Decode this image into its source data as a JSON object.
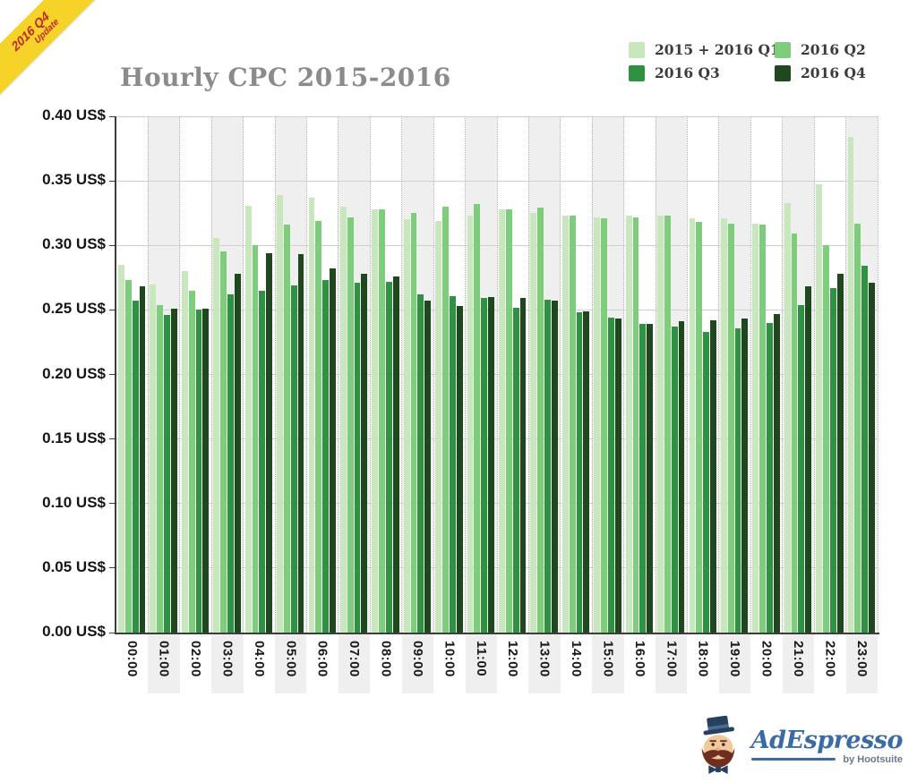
{
  "ribbon": {
    "line1": "2016 Q4",
    "line2": "Update"
  },
  "title": "Hourly CPC 2015-2016",
  "legend": [
    {
      "label": "2015 + 2016 Q1",
      "color": "#c8e7bd"
    },
    {
      "label": "2016 Q2",
      "color": "#7ecd7c"
    },
    {
      "label": "2016 Q3",
      "color": "#2f9242"
    },
    {
      "label": "2016 Q4",
      "color": "#20481f"
    }
  ],
  "chart_data": {
    "type": "bar",
    "title": "Hourly CPC 2015-2016",
    "categories": [
      "00:00",
      "01:00",
      "02:00",
      "03:00",
      "04:00",
      "05:00",
      "06:00",
      "07:00",
      "08:00",
      "09:00",
      "10:00",
      "11:00",
      "12:00",
      "13:00",
      "14:00",
      "15:00",
      "16:00",
      "17:00",
      "18:00",
      "19:00",
      "20:00",
      "21:00",
      "22:00",
      "23:00"
    ],
    "series": [
      {
        "name": "2015 + 2016 Q1",
        "color": "#c8e7bd",
        "values": [
          0.285,
          0.27,
          0.28,
          0.306,
          0.331,
          0.339,
          0.337,
          0.33,
          0.328,
          0.32,
          0.319,
          0.323,
          0.328,
          0.325,
          0.323,
          0.322,
          0.323,
          0.323,
          0.321,
          0.321,
          0.317,
          0.333,
          0.347,
          0.384
        ]
      },
      {
        "name": "2016 Q2",
        "color": "#7ecd7c",
        "values": [
          0.273,
          0.254,
          0.265,
          0.295,
          0.3,
          0.316,
          0.319,
          0.322,
          0.328,
          0.325,
          0.33,
          0.332,
          0.328,
          0.329,
          0.323,
          0.321,
          0.322,
          0.323,
          0.318,
          0.317,
          0.316,
          0.309,
          0.3,
          0.317
        ]
      },
      {
        "name": "2016 Q3",
        "color": "#2f9242",
        "values": [
          0.257,
          0.246,
          0.25,
          0.262,
          0.265,
          0.269,
          0.273,
          0.271,
          0.272,
          0.262,
          0.261,
          0.259,
          0.252,
          0.258,
          0.248,
          0.244,
          0.239,
          0.237,
          0.233,
          0.236,
          0.24,
          0.254,
          0.267,
          0.284
        ]
      },
      {
        "name": "2016 Q4",
        "color": "#20481f",
        "values": [
          0.268,
          0.251,
          0.251,
          0.278,
          0.294,
          0.293,
          0.282,
          0.278,
          0.276,
          0.257,
          0.253,
          0.26,
          0.259,
          0.257,
          0.249,
          0.243,
          0.239,
          0.241,
          0.242,
          0.243,
          0.247,
          0.268,
          0.278,
          0.271
        ]
      }
    ],
    "ylim": [
      0,
      0.4
    ],
    "ytick_step": 0.05,
    "ytick_labels": [
      "0.00 US$",
      "0.05 US$",
      "0.10 US$",
      "0.15 US$",
      "0.20 US$",
      "0.25 US$",
      "0.30 US$",
      "0.35 US$",
      "0.40 US$"
    ],
    "xlabel_rotation_deg": 90,
    "grid": true,
    "striped_columns": "odd-hours",
    "legend_position": "top-right"
  },
  "footer_logo": {
    "brand": "AdEspresso",
    "byline": "by Hootsuite"
  }
}
